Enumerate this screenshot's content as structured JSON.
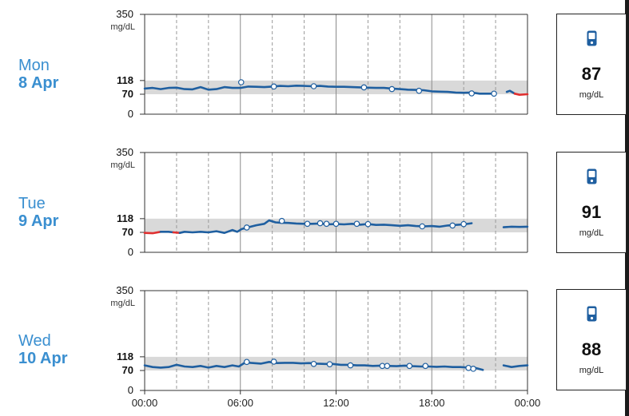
{
  "chart_data": {
    "type": "line",
    "ylabel": "mg/dL",
    "yticks": [
      0,
      70,
      118,
      350
    ],
    "ylim": [
      0,
      350
    ],
    "target_range": [
      70,
      118
    ],
    "xticks": [
      "00:00",
      "06:00",
      "12:00",
      "18:00",
      "00:00"
    ],
    "xlim_hours": [
      0,
      24
    ],
    "line_color": "#1f5fa0",
    "low_color": "#e03030",
    "band_color": "#d9d9d9",
    "days": [
      {
        "dow": "Mon",
        "date": "8 Apr",
        "reading": "87",
        "unit": "mg/dL",
        "segments": [
          {
            "color": "line",
            "points": [
              [
                0,
                90
              ],
              [
                0.5,
                92
              ],
              [
                1,
                88
              ],
              [
                1.5,
                92
              ],
              [
                2,
                93
              ],
              [
                2.5,
                88
              ],
              [
                3,
                87
              ],
              [
                3.5,
                95
              ],
              [
                4,
                86
              ],
              [
                4.5,
                88
              ],
              [
                5,
                95
              ],
              [
                5.5,
                92
              ],
              [
                6,
                92
              ],
              [
                6.5,
                97
              ],
              [
                7,
                96
              ],
              [
                7.5,
                95
              ],
              [
                8,
                97
              ],
              [
                8.5,
                99
              ],
              [
                9,
                98
              ],
              [
                9.5,
                100
              ],
              [
                10,
                99
              ],
              [
                10.5,
                98
              ],
              [
                11,
                99
              ],
              [
                11.5,
                97
              ],
              [
                12,
                96
              ],
              [
                12.5,
                96
              ],
              [
                13,
                95
              ],
              [
                13.5,
                94
              ],
              [
                14,
                93
              ],
              [
                14.5,
                92
              ],
              [
                15,
                92
              ],
              [
                15.5,
                90
              ],
              [
                16,
                88
              ],
              [
                16.5,
                86
              ],
              [
                17,
                85
              ],
              [
                17.5,
                84
              ],
              [
                18,
                80
              ],
              [
                18.5,
                79
              ],
              [
                19,
                78
              ],
              [
                19.5,
                76
              ],
              [
                20,
                75
              ],
              [
                20.5,
                76
              ],
              [
                21,
                72
              ],
              [
                21.5,
                72
              ],
              [
                22,
                72
              ]
            ]
          },
          {
            "color": "line",
            "points": [
              [
                22.7,
                78
              ],
              [
                22.9,
                82
              ],
              [
                23.2,
                72
              ]
            ]
          },
          {
            "color": "low",
            "points": [
              [
                23.2,
                72
              ],
              [
                23.5,
                68
              ],
              [
                24,
                70
              ]
            ]
          }
        ],
        "markers": [
          [
            6.05,
            112
          ],
          [
            8.1,
            97
          ],
          [
            10.6,
            98
          ],
          [
            13.75,
            94
          ],
          [
            15.5,
            88
          ],
          [
            17.2,
            82
          ],
          [
            20.5,
            73
          ],
          [
            21.9,
            72
          ]
        ]
      },
      {
        "dow": "Tue",
        "date": "9 Apr",
        "reading": "91",
        "unit": "mg/dL",
        "segments": [
          {
            "color": "low",
            "points": [
              [
                0,
                68
              ],
              [
                0.5,
                67
              ],
              [
                1,
                72
              ]
            ]
          },
          {
            "color": "line",
            "points": [
              [
                1,
                72
              ],
              [
                1.5,
                72
              ],
              [
                1.8,
                70
              ]
            ]
          },
          {
            "color": "low",
            "points": [
              [
                1.8,
                70
              ],
              [
                2.2,
                68
              ]
            ]
          },
          {
            "color": "line",
            "points": [
              [
                2.2,
                68
              ],
              [
                2.5,
                72
              ],
              [
                3,
                70
              ],
              [
                3.5,
                72
              ],
              [
                4,
                70
              ],
              [
                4.5,
                74
              ],
              [
                5,
                68
              ],
              [
                5.5,
                78
              ],
              [
                5.8,
                72
              ],
              [
                6.1,
                82
              ],
              [
                6.5,
                88
              ],
              [
                7,
                95
              ],
              [
                7.5,
                100
              ],
              [
                7.8,
                112
              ],
              [
                8.2,
                105
              ],
              [
                8.5,
                104
              ],
              [
                9,
                103
              ],
              [
                9.5,
                101
              ],
              [
                10,
                100
              ],
              [
                10.5,
                100
              ],
              [
                11,
                101
              ],
              [
                11.5,
                98
              ],
              [
                12,
                99
              ],
              [
                12.5,
                98
              ],
              [
                13,
                100
              ],
              [
                13.5,
                97
              ],
              [
                14,
                99
              ],
              [
                14.5,
                96
              ],
              [
                15,
                97
              ],
              [
                15.5,
                95
              ],
              [
                16,
                93
              ],
              [
                16.5,
                95
              ],
              [
                17,
                92
              ],
              [
                17.5,
                91
              ],
              [
                18,
                92
              ],
              [
                18.5,
                90
              ],
              [
                19,
                94
              ],
              [
                19.5,
                96
              ],
              [
                20,
                98
              ],
              [
                20.5,
                102
              ]
            ]
          },
          {
            "color": "line",
            "points": [
              [
                22.5,
                88
              ],
              [
                23,
                90
              ],
              [
                23.5,
                89
              ],
              [
                24,
                90
              ]
            ]
          }
        ],
        "markers": [
          [
            6.4,
            87
          ],
          [
            8.6,
            110
          ],
          [
            10.2,
            100
          ],
          [
            11,
            102
          ],
          [
            11.4,
            100
          ],
          [
            12,
            100
          ],
          [
            13.3,
            100
          ],
          [
            14,
            99
          ],
          [
            17.4,
            91
          ],
          [
            19.3,
            94
          ],
          [
            20,
            99
          ]
        ]
      },
      {
        "dow": "Wed",
        "date": "10 Apr",
        "reading": "88",
        "unit": "mg/dL",
        "segments": [
          {
            "color": "line",
            "points": [
              [
                0,
                88
              ],
              [
                0.5,
                82
              ],
              [
                1,
                80
              ],
              [
                1.5,
                82
              ],
              [
                2,
                90
              ],
              [
                2.5,
                84
              ],
              [
                3,
                82
              ],
              [
                3.5,
                86
              ],
              [
                4,
                80
              ],
              [
                4.5,
                86
              ],
              [
                5,
                82
              ],
              [
                5.5,
                88
              ],
              [
                5.9,
                84
              ],
              [
                6.3,
                98
              ],
              [
                6.8,
                96
              ],
              [
                7.3,
                94
              ],
              [
                7.8,
                100
              ],
              [
                8.3,
                96
              ],
              [
                8.8,
                97
              ],
              [
                9.3,
                97
              ],
              [
                9.8,
                95
              ],
              [
                10.3,
                96
              ],
              [
                10.8,
                94
              ],
              [
                11.3,
                93
              ],
              [
                11.8,
                93
              ],
              [
                12.3,
                90
              ],
              [
                12.8,
                90
              ],
              [
                13.3,
                88
              ],
              [
                13.8,
                88
              ],
              [
                14.3,
                86
              ],
              [
                14.8,
                87
              ],
              [
                15.3,
                86
              ],
              [
                15.8,
                85
              ],
              [
                16.3,
                87
              ],
              [
                16.8,
                85
              ],
              [
                17.3,
                84
              ],
              [
                17.8,
                84
              ],
              [
                18.3,
                83
              ],
              [
                18.8,
                84
              ],
              [
                19.3,
                82
              ],
              [
                19.8,
                82
              ],
              [
                20.3,
                80
              ],
              [
                20.8,
                78
              ],
              [
                21.2,
                72
              ]
            ]
          },
          {
            "color": "line",
            "points": [
              [
                22.5,
                88
              ],
              [
                23,
                82
              ],
              [
                23.5,
                86
              ],
              [
                24,
                88
              ]
            ]
          }
        ],
        "markers": [
          [
            6.4,
            100
          ],
          [
            8.1,
            101
          ],
          [
            10.6,
            93
          ],
          [
            11.6,
            92
          ],
          [
            12.9,
            88
          ],
          [
            14.9,
            86
          ],
          [
            15.2,
            86
          ],
          [
            16.6,
            86
          ],
          [
            17.6,
            86
          ],
          [
            20.3,
            79
          ],
          [
            20.6,
            76
          ]
        ]
      }
    ]
  }
}
